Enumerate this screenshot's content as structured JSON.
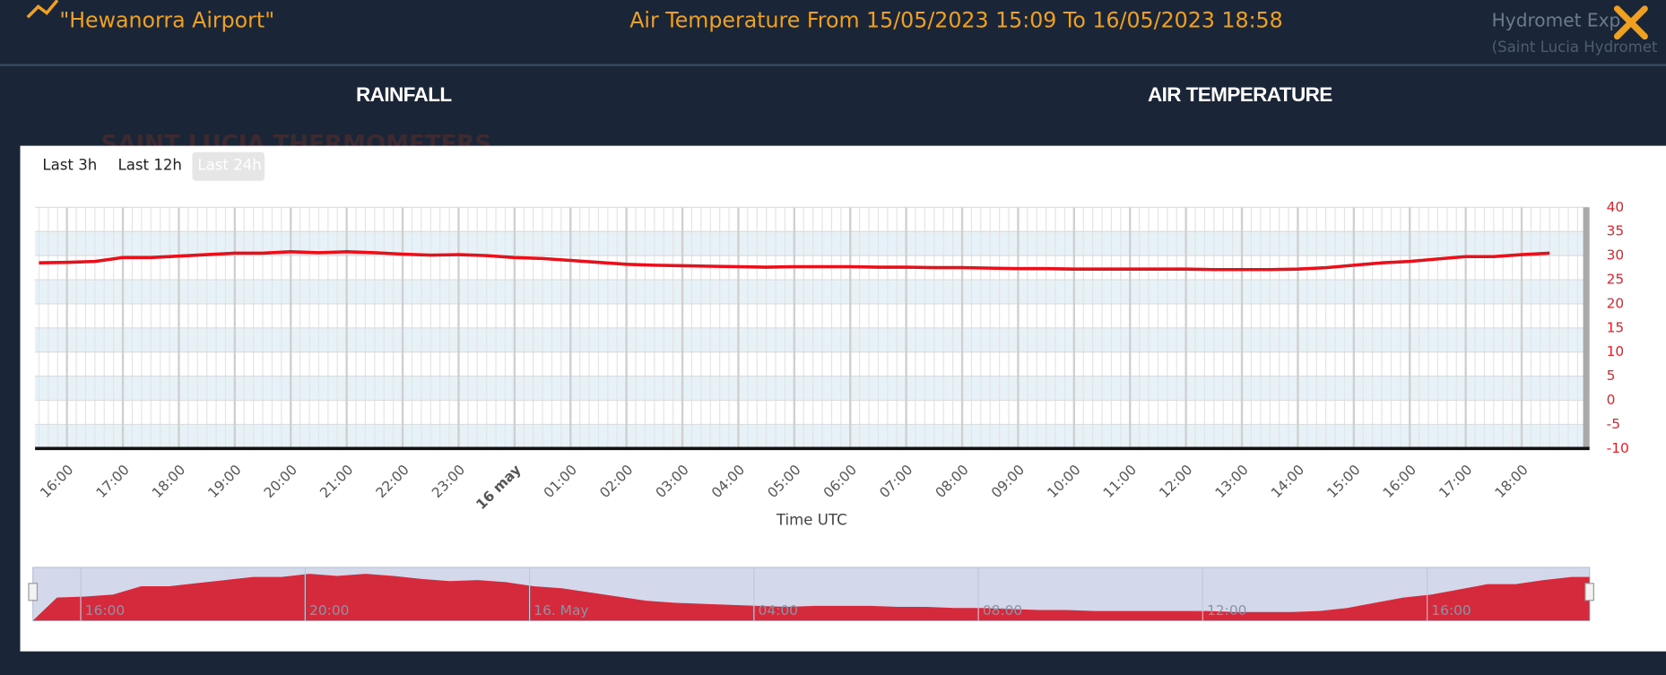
{
  "header": {
    "station": "\"Hewanorra Airport\"",
    "title": "Air Temperature From 15/05/2023 15:09 To 16/05/2023 18:58",
    "user": "Hydromet Exp",
    "org": "(Saint Lucia Hydromet"
  },
  "tabs": [
    "RAINFALL",
    "AIR TEMPERATURE"
  ],
  "background_heading": "SAINT LUCIA THERMOMETERS",
  "range_buttons": [
    "Last 3h",
    "Last 12h",
    "Last 24h"
  ],
  "chart_data": {
    "type": "line",
    "x_label": "Time UTC",
    "categories": [
      null,
      "16:00",
      null,
      "17:00",
      null,
      "18:00",
      null,
      "19:00",
      null,
      "20:00",
      null,
      "21:00",
      null,
      "22:00",
      null,
      "23:00",
      null,
      "16 may",
      null,
      "01:00",
      null,
      "02:00",
      null,
      "03:00",
      null,
      "04:00",
      null,
      "05:00",
      null,
      "06:00",
      null,
      "07:00",
      null,
      "08:00",
      null,
      "09:00",
      null,
      "10:00",
      null,
      "11:00",
      null,
      "12:00",
      null,
      "13:00",
      null,
      "14:00",
      null,
      "15:00",
      null,
      "16:00",
      null,
      "17:00",
      null,
      "18:00",
      null
    ],
    "series": [
      {
        "color": "#e8101a",
        "values": [
          28.5,
          28.6,
          28.8,
          29.6,
          29.6,
          29.9,
          30.2,
          30.5,
          30.5,
          30.8,
          30.6,
          30.8,
          30.6,
          30.3,
          30.1,
          30.2,
          30.0,
          29.6,
          29.4,
          29.0,
          28.6,
          28.2,
          28.0,
          27.9,
          27.8,
          27.7,
          27.6,
          27.7,
          27.7,
          27.7,
          27.6,
          27.6,
          27.5,
          27.5,
          27.4,
          27.3,
          27.3,
          27.2,
          27.2,
          27.2,
          27.2,
          27.2,
          27.1,
          27.1,
          27.1,
          27.2,
          27.5,
          28.0,
          28.5,
          28.8,
          29.3,
          29.8,
          29.8,
          30.2,
          30.5
        ]
      }
    ],
    "ylim": [
      -10,
      40
    ],
    "yticks": [
      40,
      35,
      30,
      25,
      20,
      15,
      10,
      5,
      0,
      -5,
      -10
    ],
    "grid": true,
    "navigator": {
      "color": "#d42a3c",
      "labels": [
        "16:00",
        "20:00",
        "16. May",
        "04:00",
        "08:00",
        "12:00",
        "16:00"
      ]
    }
  }
}
